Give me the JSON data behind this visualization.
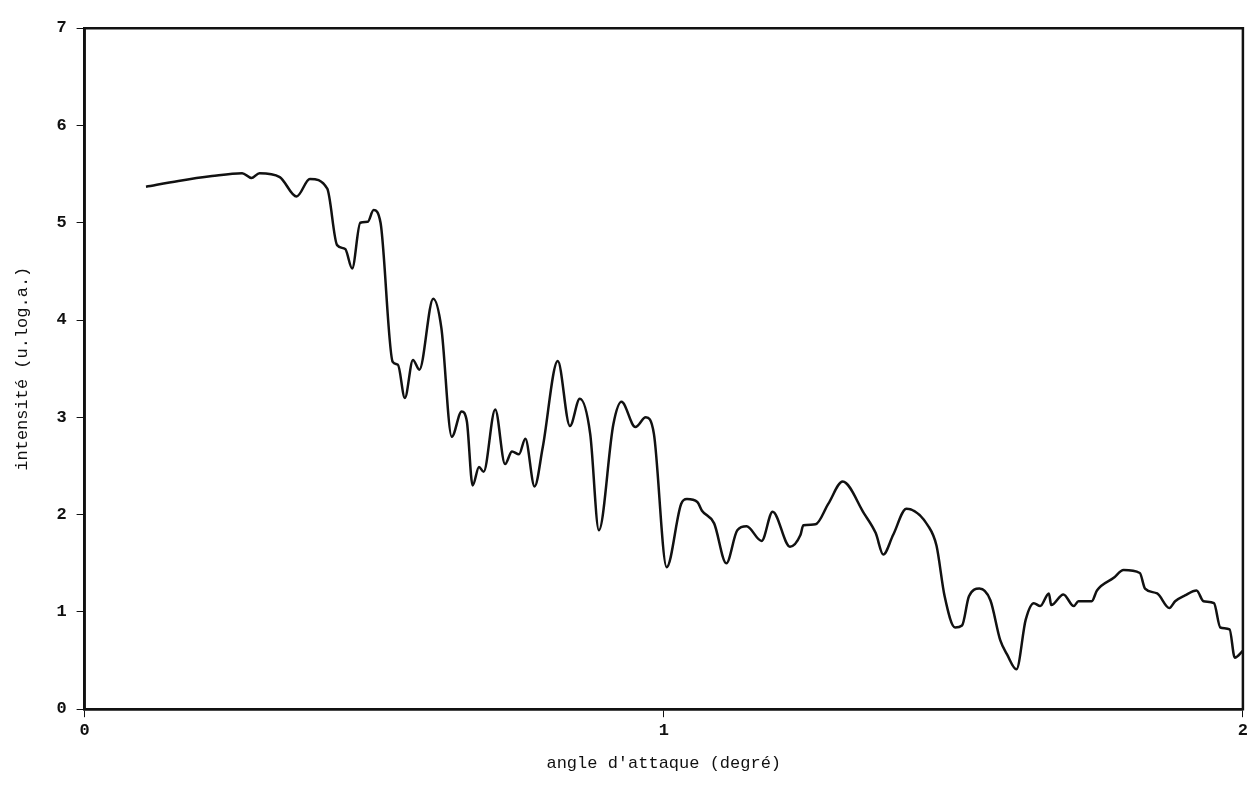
{
  "chart_data": {
    "type": "line",
    "xlabel": "angle d'attaque (degré)",
    "ylabel": "intensité (u.log.a.)",
    "xlim": [
      0,
      2
    ],
    "xticks": [
      0,
      1,
      2
    ],
    "ylim": [
      0,
      7
    ],
    "yticks": [
      0,
      1,
      2,
      3,
      4,
      5,
      6,
      7
    ],
    "marker": "none",
    "line_style": "solid",
    "legend": false,
    "grid": false,
    "series": [
      {
        "color": "#111111",
        "x": [
          0.106,
          0.162,
          0.22,
          0.272,
          0.288,
          0.302,
          0.337,
          0.366,
          0.389,
          0.419,
          0.436,
          0.45,
          0.462,
          0.476,
          0.489,
          0.499,
          0.511,
          0.532,
          0.541,
          0.553,
          0.567,
          0.578,
          0.602,
          0.616,
          0.634,
          0.651,
          0.66,
          0.67,
          0.681,
          0.689,
          0.709,
          0.726,
          0.738,
          0.75,
          0.761,
          0.777,
          0.791,
          0.817,
          0.838,
          0.855,
          0.873,
          0.888,
          0.913,
          0.927,
          0.951,
          0.969,
          0.983,
          1.005,
          1.03,
          1.04,
          1.058,
          1.066,
          1.087,
          1.108,
          1.127,
          1.143,
          1.169,
          1.188,
          1.218,
          1.236,
          1.241,
          1.262,
          1.284,
          1.309,
          1.346,
          1.366,
          1.379,
          1.396,
          1.419,
          1.457,
          1.471,
          1.485,
          1.503,
          1.515,
          1.527,
          1.545,
          1.564,
          1.581,
          1.593,
          1.609,
          1.625,
          1.639,
          1.65,
          1.665,
          1.669,
          1.69,
          1.708,
          1.716,
          1.739,
          1.748,
          1.777,
          1.794,
          1.822,
          1.831,
          1.852,
          1.873,
          1.883,
          1.9,
          1.92,
          1.932,
          1.95,
          1.961,
          1.977,
          1.986,
          2.0
        ],
        "values": [
          5.37,
          5.43,
          5.48,
          5.51,
          5.46,
          5.51,
          5.47,
          5.27,
          5.45,
          5.35,
          4.77,
          4.73,
          4.53,
          5.0,
          5.01,
          5.13,
          5.0,
          3.57,
          3.54,
          3.2,
          3.59,
          3.49,
          4.22,
          3.92,
          2.8,
          3.06,
          2.96,
          2.3,
          2.49,
          2.44,
          3.08,
          2.52,
          2.65,
          2.62,
          2.78,
          2.29,
          2.69,
          3.58,
          2.91,
          3.19,
          2.83,
          1.84,
          2.93,
          3.16,
          2.9,
          3.0,
          2.83,
          1.46,
          2.11,
          2.16,
          2.13,
          2.04,
          1.91,
          1.5,
          1.84,
          1.88,
          1.73,
          2.03,
          1.67,
          1.79,
          1.89,
          1.9,
          2.11,
          2.34,
          2.01,
          1.81,
          1.59,
          1.79,
          2.06,
          1.88,
          1.68,
          1.16,
          0.84,
          0.86,
          1.16,
          1.24,
          1.12,
          0.71,
          0.56,
          0.41,
          0.92,
          1.09,
          1.06,
          1.19,
          1.07,
          1.18,
          1.06,
          1.11,
          1.11,
          1.22,
          1.35,
          1.43,
          1.4,
          1.24,
          1.19,
          1.04,
          1.11,
          1.17,
          1.22,
          1.11,
          1.09,
          0.84,
          0.82,
          0.53,
          0.6
        ]
      }
    ]
  }
}
